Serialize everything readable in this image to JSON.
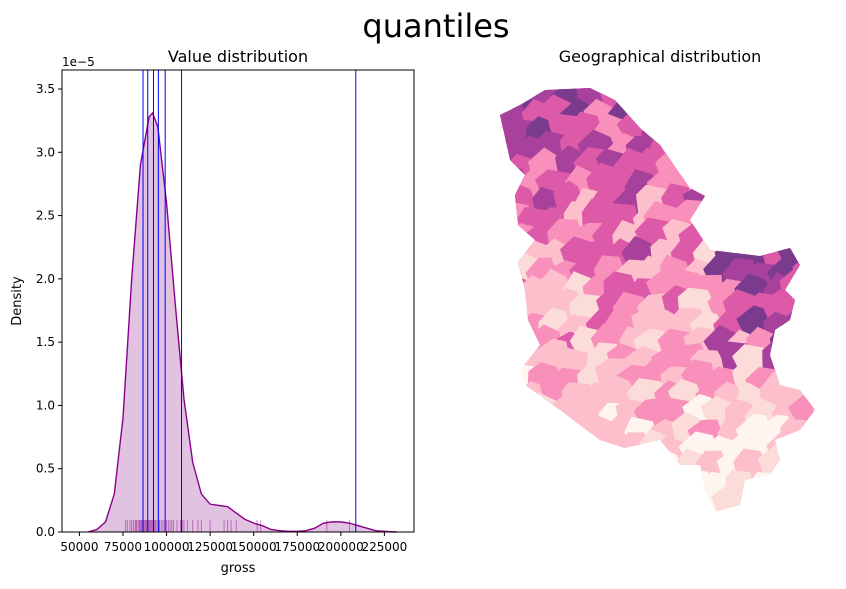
{
  "suptitle": "quantiles",
  "chart_data": [
    {
      "type": "area",
      "title": "Value distribution",
      "xlabel": "gross",
      "ylabel": "Density",
      "y_offset_label": "1e−5",
      "xlim": [
        40000,
        242000
      ],
      "ylim": [
        0,
        3.65
      ],
      "xticks": [
        50000,
        75000,
        100000,
        125000,
        150000,
        175000,
        200000,
        225000
      ],
      "yticks": [
        0.0,
        0.5,
        1.0,
        1.5,
        2.0,
        2.5,
        3.0,
        3.5
      ],
      "ytick_labels": [
        "0.0",
        "0.5",
        "1.0",
        "1.5",
        "2.0",
        "2.5",
        "3.0",
        "3.5"
      ],
      "kde_color": "#8b008b",
      "fill_color": "#dfbfdf",
      "quantile_line_color": "#0000ff",
      "kde": {
        "x": [
          55000,
          60000,
          65000,
          70000,
          75000,
          80000,
          85000,
          90000,
          92000,
          95000,
          100000,
          105000,
          110000,
          115000,
          120000,
          125000,
          130000,
          135000,
          140000,
          145000,
          150000,
          155000,
          160000,
          165000,
          170000,
          175000,
          180000,
          185000,
          190000,
          195000,
          200000,
          205000,
          210000,
          215000,
          220000,
          225000,
          232000
        ],
        "y": [
          0,
          0.02,
          0.08,
          0.3,
          0.9,
          2.0,
          2.9,
          3.28,
          3.31,
          3.2,
          2.6,
          1.8,
          1.05,
          0.55,
          0.3,
          0.22,
          0.21,
          0.2,
          0.15,
          0.1,
          0.07,
          0.05,
          0.02,
          0.01,
          0.005,
          0.005,
          0.01,
          0.03,
          0.07,
          0.08,
          0.08,
          0.07,
          0.05,
          0.03,
          0.01,
          0.005,
          0
        ]
      },
      "quantile_lines": [
        86500,
        89200,
        92500,
        95300,
        99200,
        108600,
        208600
      ],
      "rug": [
        76500,
        77500,
        79000,
        80000,
        81000,
        82000,
        82500,
        83000,
        84000,
        84500,
        85000,
        85500,
        86000,
        86500,
        87000,
        87500,
        88000,
        88500,
        89000,
        89500,
        90000,
        90500,
        91000,
        91500,
        92000,
        92500,
        93000,
        93500,
        94000,
        95000,
        95500,
        96000,
        97000,
        98000,
        99000,
        100000,
        101000,
        102000,
        103000,
        104000,
        106000,
        108000,
        109000,
        110000,
        112000,
        115000,
        118000,
        120000,
        125000,
        133000,
        135000,
        137000,
        140000,
        152000,
        154000,
        192000,
        205000
      ]
    },
    {
      "type": "choropleth",
      "title": "Geographical distribution",
      "palette": [
        "#fff5f0",
        "#fcdcd9",
        "#fcbfcb",
        "#f98fbb",
        "#dc5aa8",
        "#a7419b",
        "#7a3b8e"
      ]
    }
  ]
}
